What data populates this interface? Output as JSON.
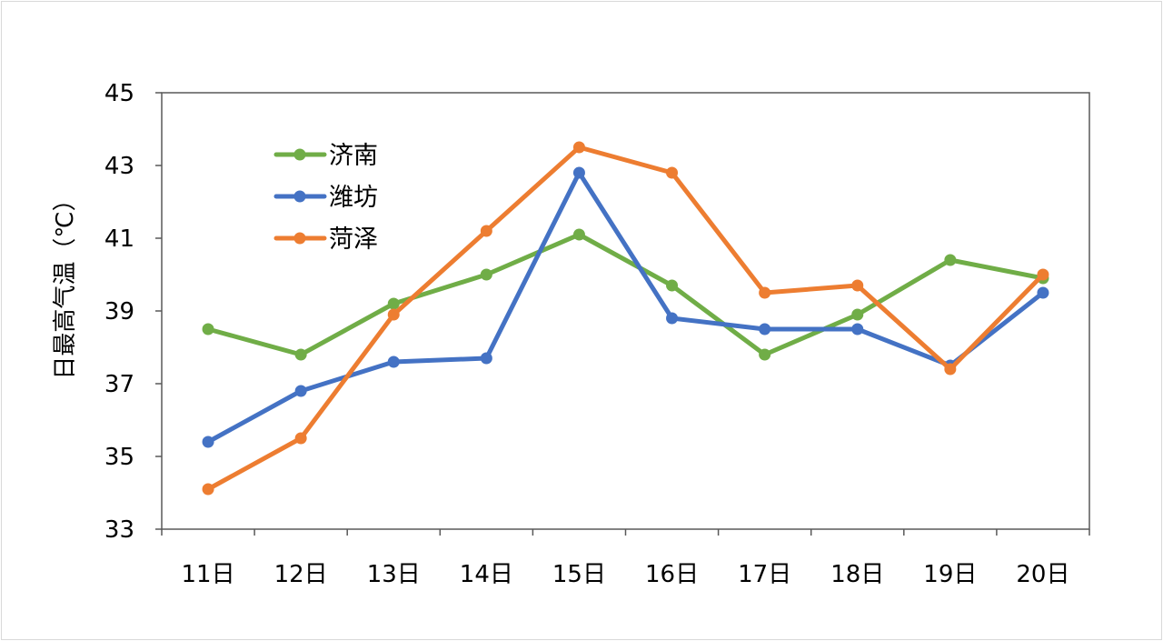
{
  "chart_data": {
    "type": "line",
    "title": "",
    "xlabel": "",
    "ylabel": "日最高气温（℃）",
    "categories": [
      "11日",
      "12日",
      "13日",
      "14日",
      "15日",
      "16日",
      "17日",
      "18日",
      "19日",
      "20日"
    ],
    "ylim": [
      33,
      45
    ],
    "yticks": [
      33,
      35,
      37,
      39,
      41,
      43,
      45
    ],
    "grid": false,
    "legend_position": "top-left",
    "series": [
      {
        "name": "济南",
        "color": "#70ad47",
        "values": [
          38.5,
          37.8,
          39.2,
          40.0,
          41.1,
          39.7,
          37.8,
          38.9,
          40.4,
          39.9
        ]
      },
      {
        "name": "潍坊",
        "color": "#4472c4",
        "values": [
          35.4,
          36.8,
          37.6,
          37.7,
          42.8,
          38.8,
          38.5,
          38.5,
          37.5,
          39.5
        ]
      },
      {
        "name": "菏泽",
        "color": "#ed7d31",
        "values": [
          34.1,
          35.5,
          38.9,
          41.2,
          43.5,
          42.8,
          39.5,
          39.7,
          37.4,
          40.0
        ]
      }
    ]
  }
}
